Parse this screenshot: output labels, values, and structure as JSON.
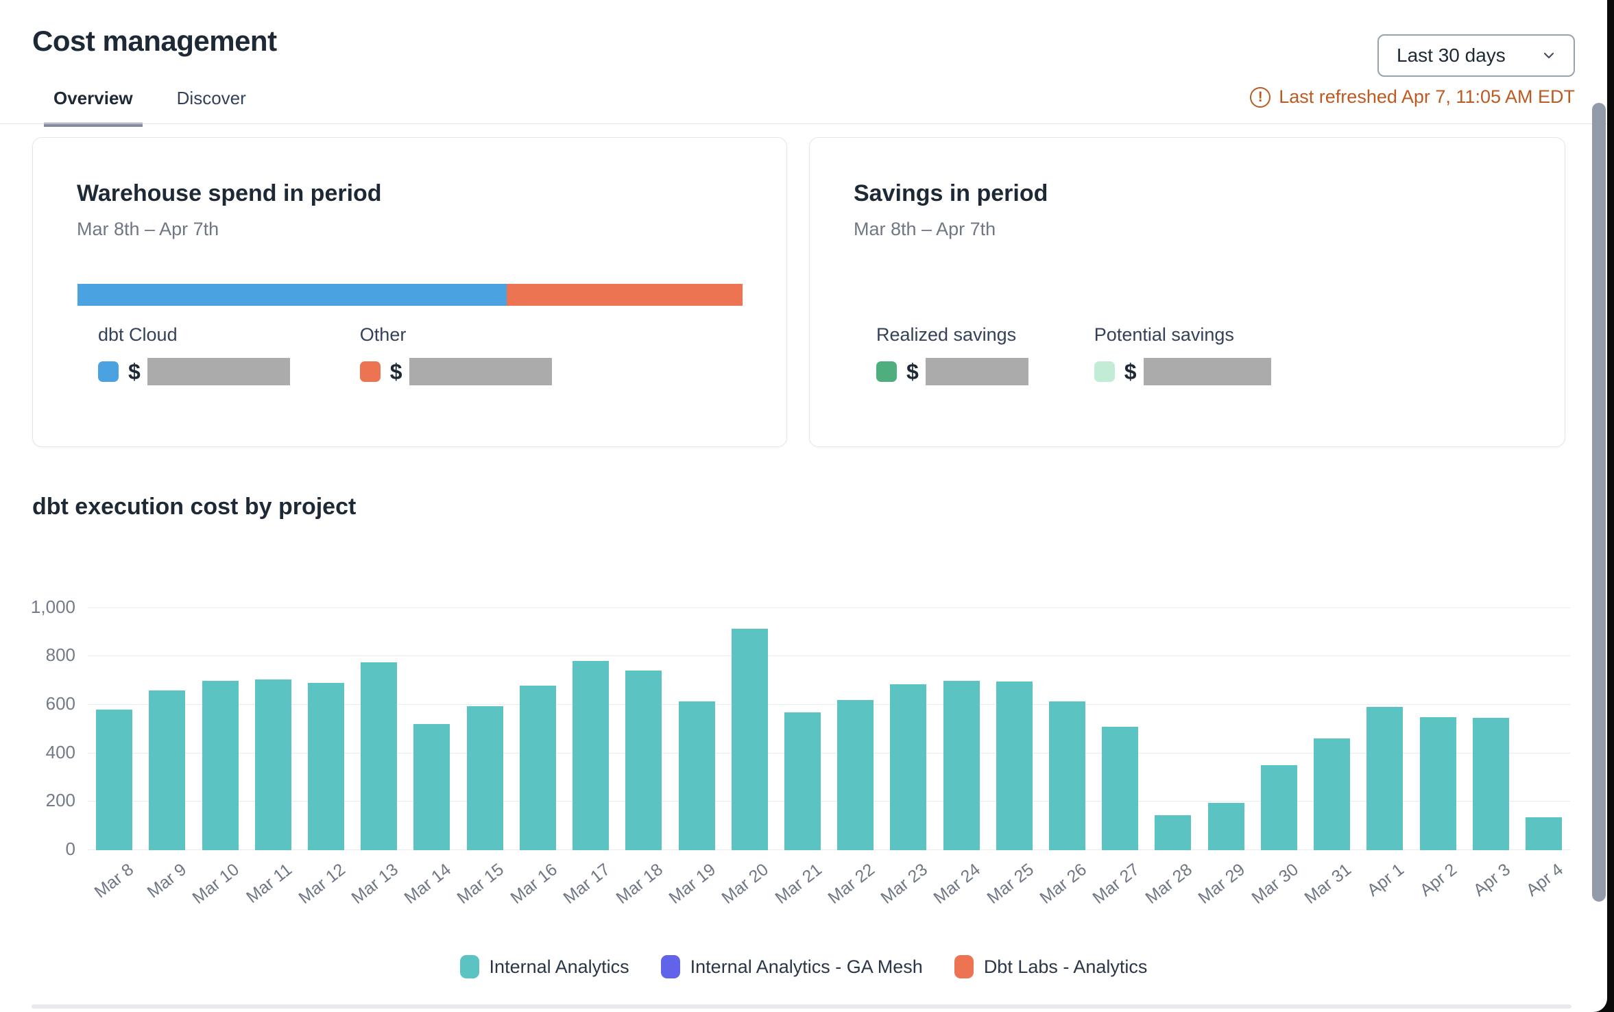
{
  "header": {
    "title": "Cost management",
    "tabs": [
      {
        "label": "Overview",
        "active": true
      },
      {
        "label": "Discover",
        "active": false
      }
    ],
    "date_range_selector": {
      "value": "Last 30 days"
    },
    "last_refreshed": "Last refreshed Apr 7, 11:05 AM EDT",
    "last_refreshed_color": "#bc5a21"
  },
  "cards": {
    "warehouse_spend": {
      "title": "Warehouse spend in period",
      "subtitle": "Mar 8th – Apr 7th",
      "stacked_bar": {
        "dbt_cloud_pct": 64.5,
        "other_pct": 35.5
      },
      "legend": [
        {
          "label": "dbt Cloud",
          "currency": "$",
          "value_redacted": true,
          "color": "#4aa2e0"
        },
        {
          "label": "Other",
          "currency": "$",
          "value_redacted": true,
          "color": "#ec7453"
        }
      ]
    },
    "savings": {
      "title": "Savings in period",
      "subtitle": "Mar 8th – Apr 7th",
      "legend": [
        {
          "label": "Realized savings",
          "currency": "$",
          "value_redacted": true,
          "color": "#4fae7e"
        },
        {
          "label": "Potential savings",
          "currency": "$",
          "value_redacted": true,
          "color": "#c2ecd5"
        }
      ]
    }
  },
  "chart_section": {
    "title": "dbt execution cost by project"
  },
  "chart_data": {
    "type": "bar",
    "title": "dbt execution cost by project",
    "categories": [
      "Mar 8",
      "Mar 9",
      "Mar 10",
      "Mar 11",
      "Mar 12",
      "Mar 13",
      "Mar 14",
      "Mar 15",
      "Mar 16",
      "Mar 17",
      "Mar 18",
      "Mar 19",
      "Mar 20",
      "Mar 21",
      "Mar 22",
      "Mar 23",
      "Mar 24",
      "Mar 25",
      "Mar 26",
      "Mar 27",
      "Mar 28",
      "Mar 29",
      "Mar 30",
      "Mar 31",
      "Apr 1",
      "Apr 2",
      "Apr 3",
      "Apr 4"
    ],
    "series": [
      {
        "name": "Internal Analytics",
        "color": "#5cc3c3",
        "values": [
          580,
          660,
          700,
          705,
          690,
          775,
          520,
          595,
          680,
          780,
          740,
          615,
          915,
          570,
          620,
          685,
          700,
          695,
          615,
          510,
          145,
          195,
          350,
          460,
          590,
          550,
          545,
          135
        ]
      },
      {
        "name": "Internal Analytics - GA Mesh",
        "color": "#6163e8",
        "values": [
          0,
          0,
          0,
          0,
          0,
          0,
          0,
          0,
          0,
          0,
          0,
          0,
          0,
          0,
          0,
          0,
          0,
          0,
          0,
          0,
          0,
          0,
          0,
          0,
          0,
          0,
          0,
          0
        ]
      },
      {
        "name": "Dbt Labs - Analytics",
        "color": "#ec7453",
        "values": [
          0,
          0,
          0,
          0,
          0,
          0,
          0,
          0,
          0,
          0,
          0,
          0,
          0,
          0,
          0,
          0,
          0,
          0,
          0,
          0,
          0,
          0,
          0,
          0,
          0,
          0,
          0,
          0
        ]
      }
    ],
    "ylim": [
      0,
      1000
    ],
    "yticks": [
      0,
      200,
      400,
      600,
      800,
      1000
    ],
    "ytick_labels": [
      "0",
      "200",
      "400",
      "600",
      "800",
      "1,000"
    ],
    "grid": true,
    "legend_position": "bottom"
  }
}
